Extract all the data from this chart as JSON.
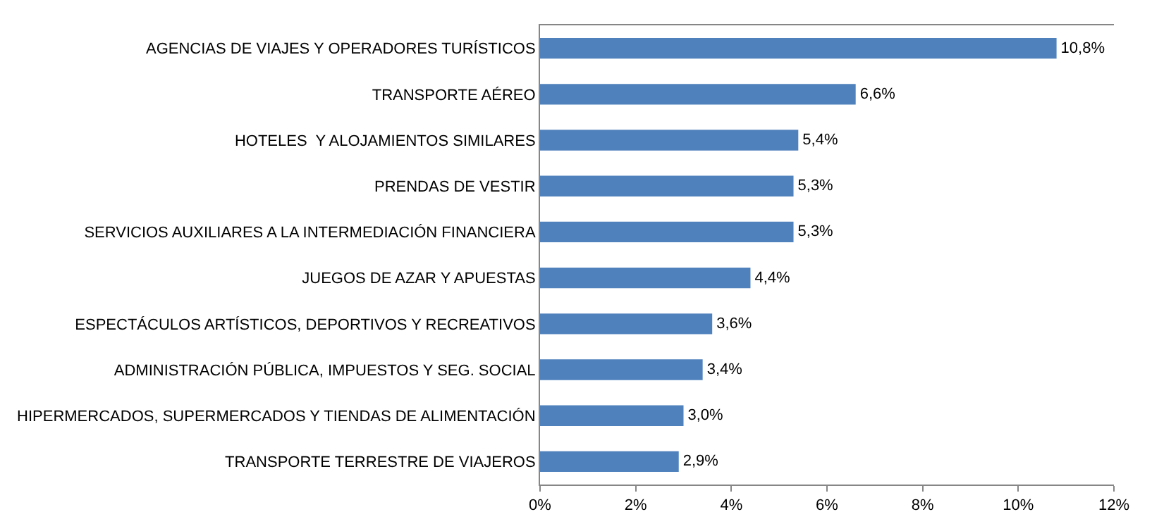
{
  "chart_data": {
    "type": "bar",
    "orientation": "horizontal",
    "categories": [
      "AGENCIAS DE VIAJES Y OPERADORES TURÍSTICOS",
      "TRANSPORTE AÉREO",
      "HOTELES  Y ALOJAMIENTOS SIMILARES",
      "PRENDAS DE VESTIR",
      "SERVICIOS AUXILIARES A LA INTERMEDIACIÓN FINANCIERA",
      "JUEGOS DE AZAR Y APUESTAS",
      "ESPECTÁCULOS ARTÍSTICOS, DEPORTIVOS Y RECREATIVOS",
      "ADMINISTRACIÓN PÚBLICA, IMPUESTOS Y SEG. SOCIAL",
      "HIPERMERCADOS, SUPERMERCADOS Y TIENDAS DE ALIMENTACIÓN",
      "TRANSPORTE TERRESTRE DE VIAJEROS"
    ],
    "values": [
      10.8,
      6.6,
      5.4,
      5.3,
      5.3,
      4.4,
      3.6,
      3.4,
      3.0,
      2.9
    ],
    "value_labels": [
      "10,8%",
      "6,6%",
      "5,4%",
      "5,3%",
      "5,3%",
      "4,4%",
      "3,6%",
      "3,4%",
      "3,0%",
      "2,9%"
    ],
    "color": "#4f81bd",
    "xlim": [
      0,
      12
    ],
    "xticks": [
      {
        "value": 0,
        "label": "0%"
      },
      {
        "value": 2,
        "label": "2%"
      },
      {
        "value": 4,
        "label": "4%"
      },
      {
        "value": 6,
        "label": "6%"
      },
      {
        "value": 8,
        "label": "8%"
      },
      {
        "value": 10,
        "label": "10%"
      },
      {
        "value": 12,
        "label": "12%"
      }
    ],
    "legend": false
  }
}
